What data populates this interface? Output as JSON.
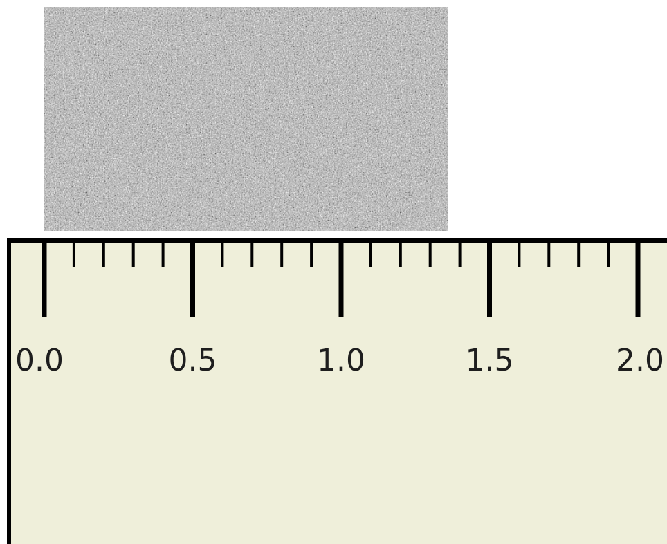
{
  "sample": {
    "kind": "noise-texture",
    "colors": {
      "light": "#e4e4e4",
      "mid": "#a8a8a8",
      "dark": "#3a3a3a"
    }
  },
  "ruler": {
    "background_color": "#efefda",
    "line_color": "#000000",
    "range": [
      0.0,
      2.0
    ],
    "major_step": 0.5,
    "minor_step": 0.1,
    "labels": [
      {
        "value": 0.0,
        "text": "0.0"
      },
      {
        "value": 0.5,
        "text": "0.5"
      },
      {
        "value": 1.0,
        "text": "1.0"
      },
      {
        "value": 1.5,
        "text": "1.5"
      },
      {
        "value": 2.0,
        "text": "2.0"
      }
    ]
  }
}
